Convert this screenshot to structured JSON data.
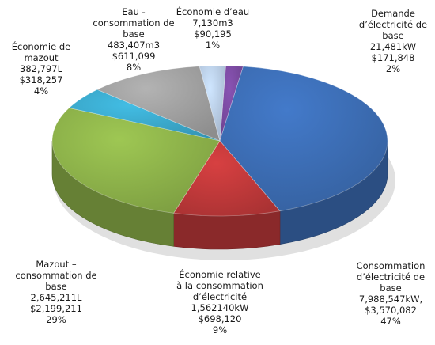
{
  "chart_data": {
    "type": "pie",
    "title": "",
    "slices": [
      {
        "key": "elec_demand",
        "label": "Demande d’électricité de base",
        "label_lines": [
          "Demande",
          "d’électricité de",
          "base"
        ],
        "amount": "21,481kW",
        "value": "$171,848",
        "percent": 2,
        "color": "#7a4aa0"
      },
      {
        "key": "elec_base",
        "label": "Consommation d’électricité de base",
        "label_lines": [
          "Consommation",
          "d’électricité de",
          "base"
        ],
        "amount": "7,988,547kW,",
        "value": "$3,570,082",
        "percent": 47,
        "color": "#3c6db4"
      },
      {
        "key": "elec_savings",
        "label": "Économie relative à la consommation d’électricité",
        "label_lines": [
          "Économie relative",
          "à la consommation",
          "d’électricité"
        ],
        "amount": "1,562140kW",
        "value": "$698,120",
        "percent": 9,
        "color": "#c0393a"
      },
      {
        "key": "oil_base",
        "label": "Mazout – consommation de base",
        "label_lines": [
          "Mazout –",
          "consommation de",
          "base"
        ],
        "amount": "2,645,211L",
        "value": "$2,199,211",
        "percent": 29,
        "color": "#8db24a"
      },
      {
        "key": "oil_savings",
        "label": "Économie de mazout",
        "label_lines": [
          "Économie de",
          "mazout"
        ],
        "amount": "382,797L",
        "value": "$318,257",
        "percent": 4,
        "color": "#3ba9cc"
      },
      {
        "key": "water_base",
        "label": "Eau - consommation de base",
        "label_lines": [
          "Eau -",
          "consommation de",
          "base"
        ],
        "amount": "483,407m3",
        "value": "$611,099",
        "percent": 8,
        "color": "#a0a0a0"
      },
      {
        "key": "water_savings",
        "label": "Économie d’eau",
        "label_lines": [
          "Économie d’eau"
        ],
        "amount": "7,130m3",
        "value": "$90,195",
        "percent": 1,
        "color": "#b9cde6"
      }
    ]
  }
}
